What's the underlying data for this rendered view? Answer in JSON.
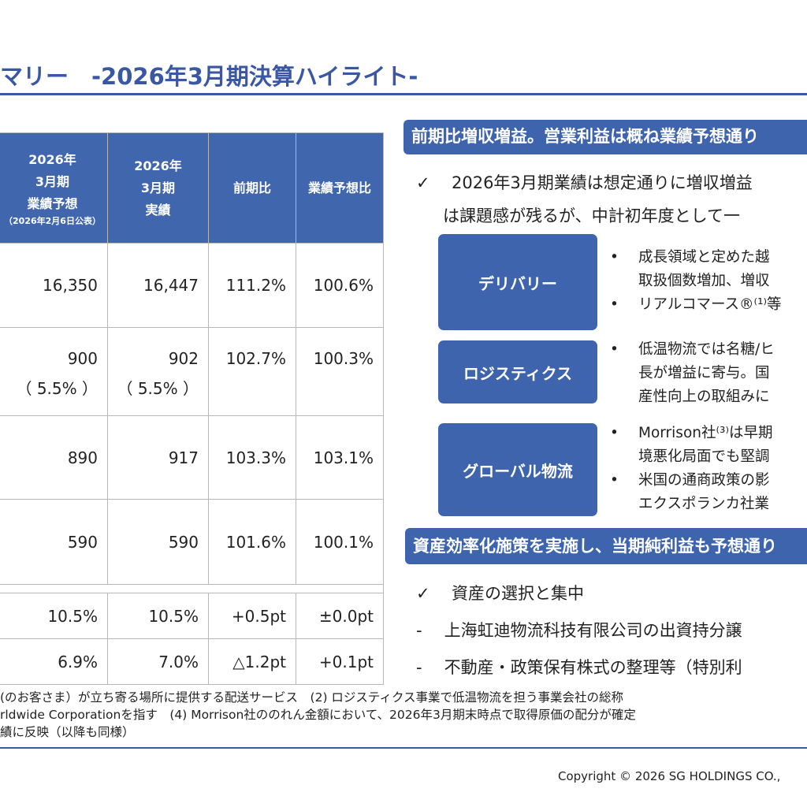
{
  "title": "マリー　-2026年3月期決算ハイライト-",
  "table": {
    "headers": [
      {
        "lines": [
          "2026年",
          "3月期",
          "業績予想"
        ],
        "note": "（2026年2月6日公表）"
      },
      {
        "lines": [
          "2026年",
          "3月期",
          "実績"
        ]
      },
      {
        "lines": [
          "前期比"
        ]
      },
      {
        "lines": [
          "業績予想比"
        ]
      }
    ],
    "rows": [
      {
        "forecast": "16,350",
        "actual": "16,447",
        "yoy": "111.2%",
        "vs_forecast": "100.6%"
      },
      {
        "forecast": "900",
        "forecast_sub": "（ 5.5% ）",
        "actual": "902",
        "actual_sub": "（ 5.5% ）",
        "yoy": "102.7%",
        "vs_forecast": "100.3%"
      },
      {
        "forecast": "890",
        "actual": "917",
        "yoy": "103.3%",
        "vs_forecast": "103.1%"
      },
      {
        "forecast": "590",
        "actual": "590",
        "yoy": "101.6%",
        "vs_forecast": "100.1%"
      }
    ],
    "ratio_rows": [
      {
        "forecast": "10.5%",
        "actual": "10.5%",
        "yoy": "+0.5pt",
        "vs_forecast": "±0.0pt"
      },
      {
        "forecast": "6.9%",
        "actual": "7.0%",
        "yoy": "△1.2pt",
        "vs_forecast": "+0.1pt"
      }
    ]
  },
  "panel": {
    "banner1": "前期比増収増益。営業利益は概ね業績予想通り",
    "summary_check": "✓",
    "summary_line1": "2026年3月期業績は想定通りに増収増益",
    "summary_line2": "は課題感が残るが、中計初年度として一",
    "segments": [
      {
        "label": "デリバリー",
        "bullets": [
          {
            "mark": "•",
            "lines": [
              "成長領域と定めた越",
              "取扱個数増加、増収"
            ]
          },
          {
            "mark": "•",
            "lines": [
              "リアルコマース®⁽¹⁾等"
            ]
          }
        ]
      },
      {
        "label": "ロジスティクス",
        "bullets": [
          {
            "mark": "•",
            "lines": [
              "低温物流では名糖/ヒ",
              "長が増益に寄与。国",
              "産性向上の取組みに"
            ]
          }
        ]
      },
      {
        "label": "グローバル物流",
        "bullets": [
          {
            "mark": "•",
            "lines": [
              "Morrison社⁽³⁾は早期",
              "境悪化局面でも堅調"
            ]
          },
          {
            "mark": "•",
            "lines": [
              "米国の通商政策の影",
              "エクスポランカ社業"
            ]
          }
        ]
      }
    ],
    "banner2": "資産効率化施策を実施し、当期純利益も予想通り",
    "asset_check": "✓",
    "asset_head": "資産の選択と集中",
    "asset_items": [
      {
        "mark": "-",
        "text": "上海虹迪物流科技有限公司の出資持分譲"
      },
      {
        "mark": "-",
        "text": "不動産・政策保有株式の整理等（特別利"
      }
    ]
  },
  "notes": [
    "(のお客さま）が立ち寄る場所に提供する配送サービス　(2) ロジスティクス事業で低温物流を担う事業会社の総称",
    "rldwide Corporationを指す　(4) Morrison社ののれん金額において、2026年3月期末時点で取得原価の配分が確定",
    "績に反映（以降も同様）"
  ],
  "copyright": "Copyright © 2026 SG HOLDINGS CO.,"
}
